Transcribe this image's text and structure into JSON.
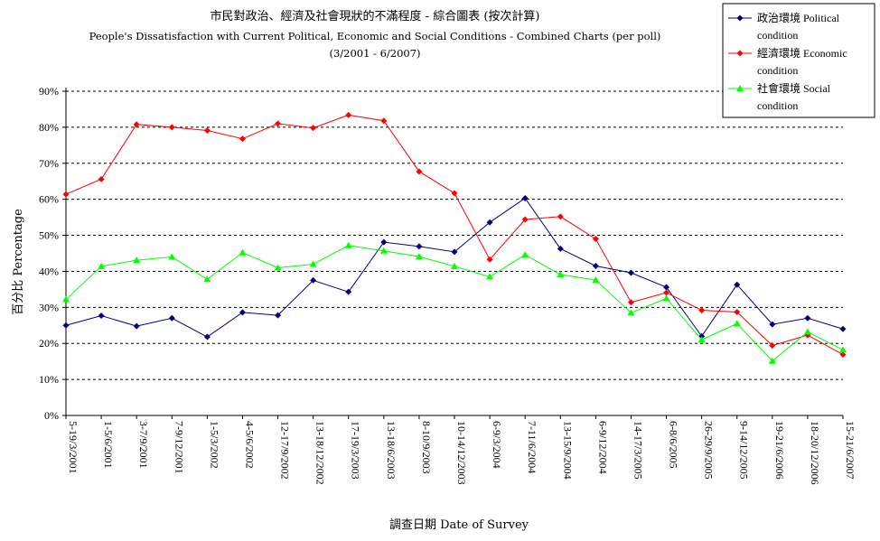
{
  "chart_data": {
    "type": "line",
    "title": "市民對政治、經濟及社會現狀的不滿程度 - 綜合圖表 (按次計算)",
    "subtitle": "People's Dissatisfaction with Current Political, Economic and Social Conditions - Combined Charts  (per poll)",
    "period": "(3/2001 - 6/2007)",
    "xlabel": "調查日期 Date of Survey",
    "ylabel": "百分比 Percentage",
    "ylim": [
      0,
      90
    ],
    "yticks": [
      "0%",
      "10%",
      "20%",
      "30%",
      "40%",
      "50%",
      "60%",
      "70%",
      "80%",
      "90%"
    ],
    "grid": "horizontal dashed",
    "legend_position": "top-right",
    "categories": [
      "5-19/3/2001",
      "1-5/6/2001",
      "3-7/9/2001",
      "7-9/12/2001",
      "1-5/3/2002",
      "4-5/6/2002",
      "12-17/9/2002",
      "13-18/12/2002",
      "17-19/3/2003",
      "13-18/6/2003",
      "8-10/9/2003",
      "10-14/12/2003",
      "6-9/3/2004",
      "7-11/6/2004",
      "13-15/9/2004",
      "6-9/12/2004",
      "14-17/3/2005",
      "6-8/6/2005",
      "26-29/9/2005",
      "9-14/12/2005",
      "19-21/6/2006",
      "18-20/12/2006",
      "15-21/6/2007"
    ],
    "series": [
      {
        "name": "政治環境 Political condition",
        "color": "#000080",
        "marker": "diamond",
        "values": [
          25,
          27.7,
          24.8,
          27,
          21.8,
          28.6,
          27.8,
          37.5,
          34.3,
          48.1,
          46.9,
          45.4,
          53.6,
          60.3,
          46.3,
          41.5,
          39.6,
          35.6,
          22,
          36.3,
          25.3,
          27,
          24
        ]
      },
      {
        "name": "經濟環境 Economic condition",
        "color": "#ff0000",
        "marker": "diamond",
        "values": [
          61.4,
          65.6,
          80.8,
          80,
          79.1,
          76.8,
          81,
          79.8,
          83.4,
          81.8,
          67.7,
          61.7,
          43.3,
          54.4,
          55.2,
          49,
          31.4,
          34.1,
          29.2,
          28.7,
          19.4,
          22.3,
          16.9
        ]
      },
      {
        "name": "社會環境 Social condition",
        "color": "#00ff00",
        "marker": "triangle",
        "values": [
          32.2,
          41.4,
          43.1,
          44,
          37.8,
          45.2,
          41,
          42,
          47.2,
          45.7,
          44.1,
          41.4,
          38.5,
          44.6,
          39.1,
          37.6,
          28.5,
          32.5,
          21,
          25.5,
          15.1,
          23.2,
          18.2
        ]
      }
    ]
  }
}
